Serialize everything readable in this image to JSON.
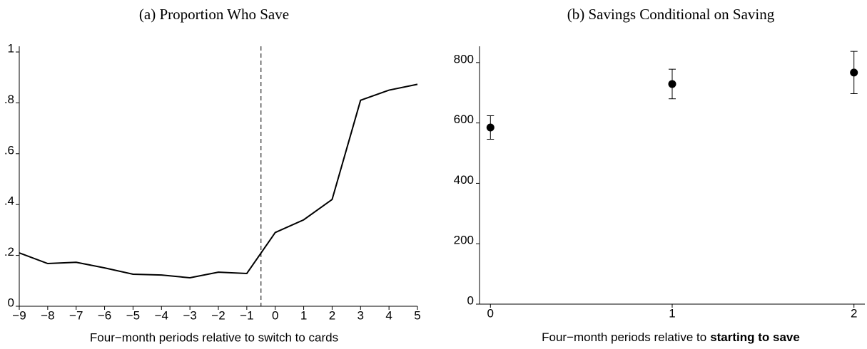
{
  "chart_data": [
    {
      "type": "line",
      "title": "(a) Proportion Who Save",
      "xlabel": "Four−month periods relative to switch to cards",
      "x": [
        -9,
        -8,
        -7,
        -6,
        -5,
        -4,
        -3,
        -2,
        -1,
        0,
        1,
        2,
        3,
        4,
        5
      ],
      "values": [
        0.21,
        0.168,
        0.173,
        0.151,
        0.126,
        0.123,
        0.112,
        0.134,
        0.129,
        0.29,
        0.34,
        0.42,
        0.81,
        0.85,
        0.873
      ],
      "color": "#000000",
      "vline": -0.5,
      "xlim": [
        -9,
        5
      ],
      "xticks": [
        {
          "value": -9,
          "label": "−9"
        },
        {
          "value": -8,
          "label": "−8"
        },
        {
          "value": -7,
          "label": "−7"
        },
        {
          "value": -6,
          "label": "−6"
        },
        {
          "value": -5,
          "label": "−5"
        },
        {
          "value": -4,
          "label": "−4"
        },
        {
          "value": -3,
          "label": "−3"
        },
        {
          "value": -2,
          "label": "−2"
        },
        {
          "value": -1,
          "label": "−1"
        },
        0,
        1,
        2,
        3,
        4,
        5
      ],
      "ylim": [
        0,
        1
      ],
      "yticks": [
        0,
        {
          "value": 0.2,
          "label": ".2"
        },
        {
          "value": 0.4,
          "label": ".4"
        },
        {
          "value": 0.6,
          "label": ".6"
        },
        {
          "value": 0.8,
          "label": ".8"
        },
        1
      ]
    },
    {
      "type": "scatter",
      "title": "(b) Savings Conditional on Saving",
      "xlabel": {
        "text": "Four−month periods relative to",
        "emphasis": "starting to save"
      },
      "x": [
        0,
        1,
        2
      ],
      "values": [
        585,
        729,
        767
      ],
      "errors": [
        39,
        49,
        70
      ],
      "color": "#000000",
      "xlim": [
        -0.06,
        2.06
      ],
      "xticks": [
        0,
        1,
        2
      ],
      "ylim": [
        0,
        835
      ],
      "yticks": [
        0,
        200,
        400,
        600,
        800
      ]
    }
  ]
}
